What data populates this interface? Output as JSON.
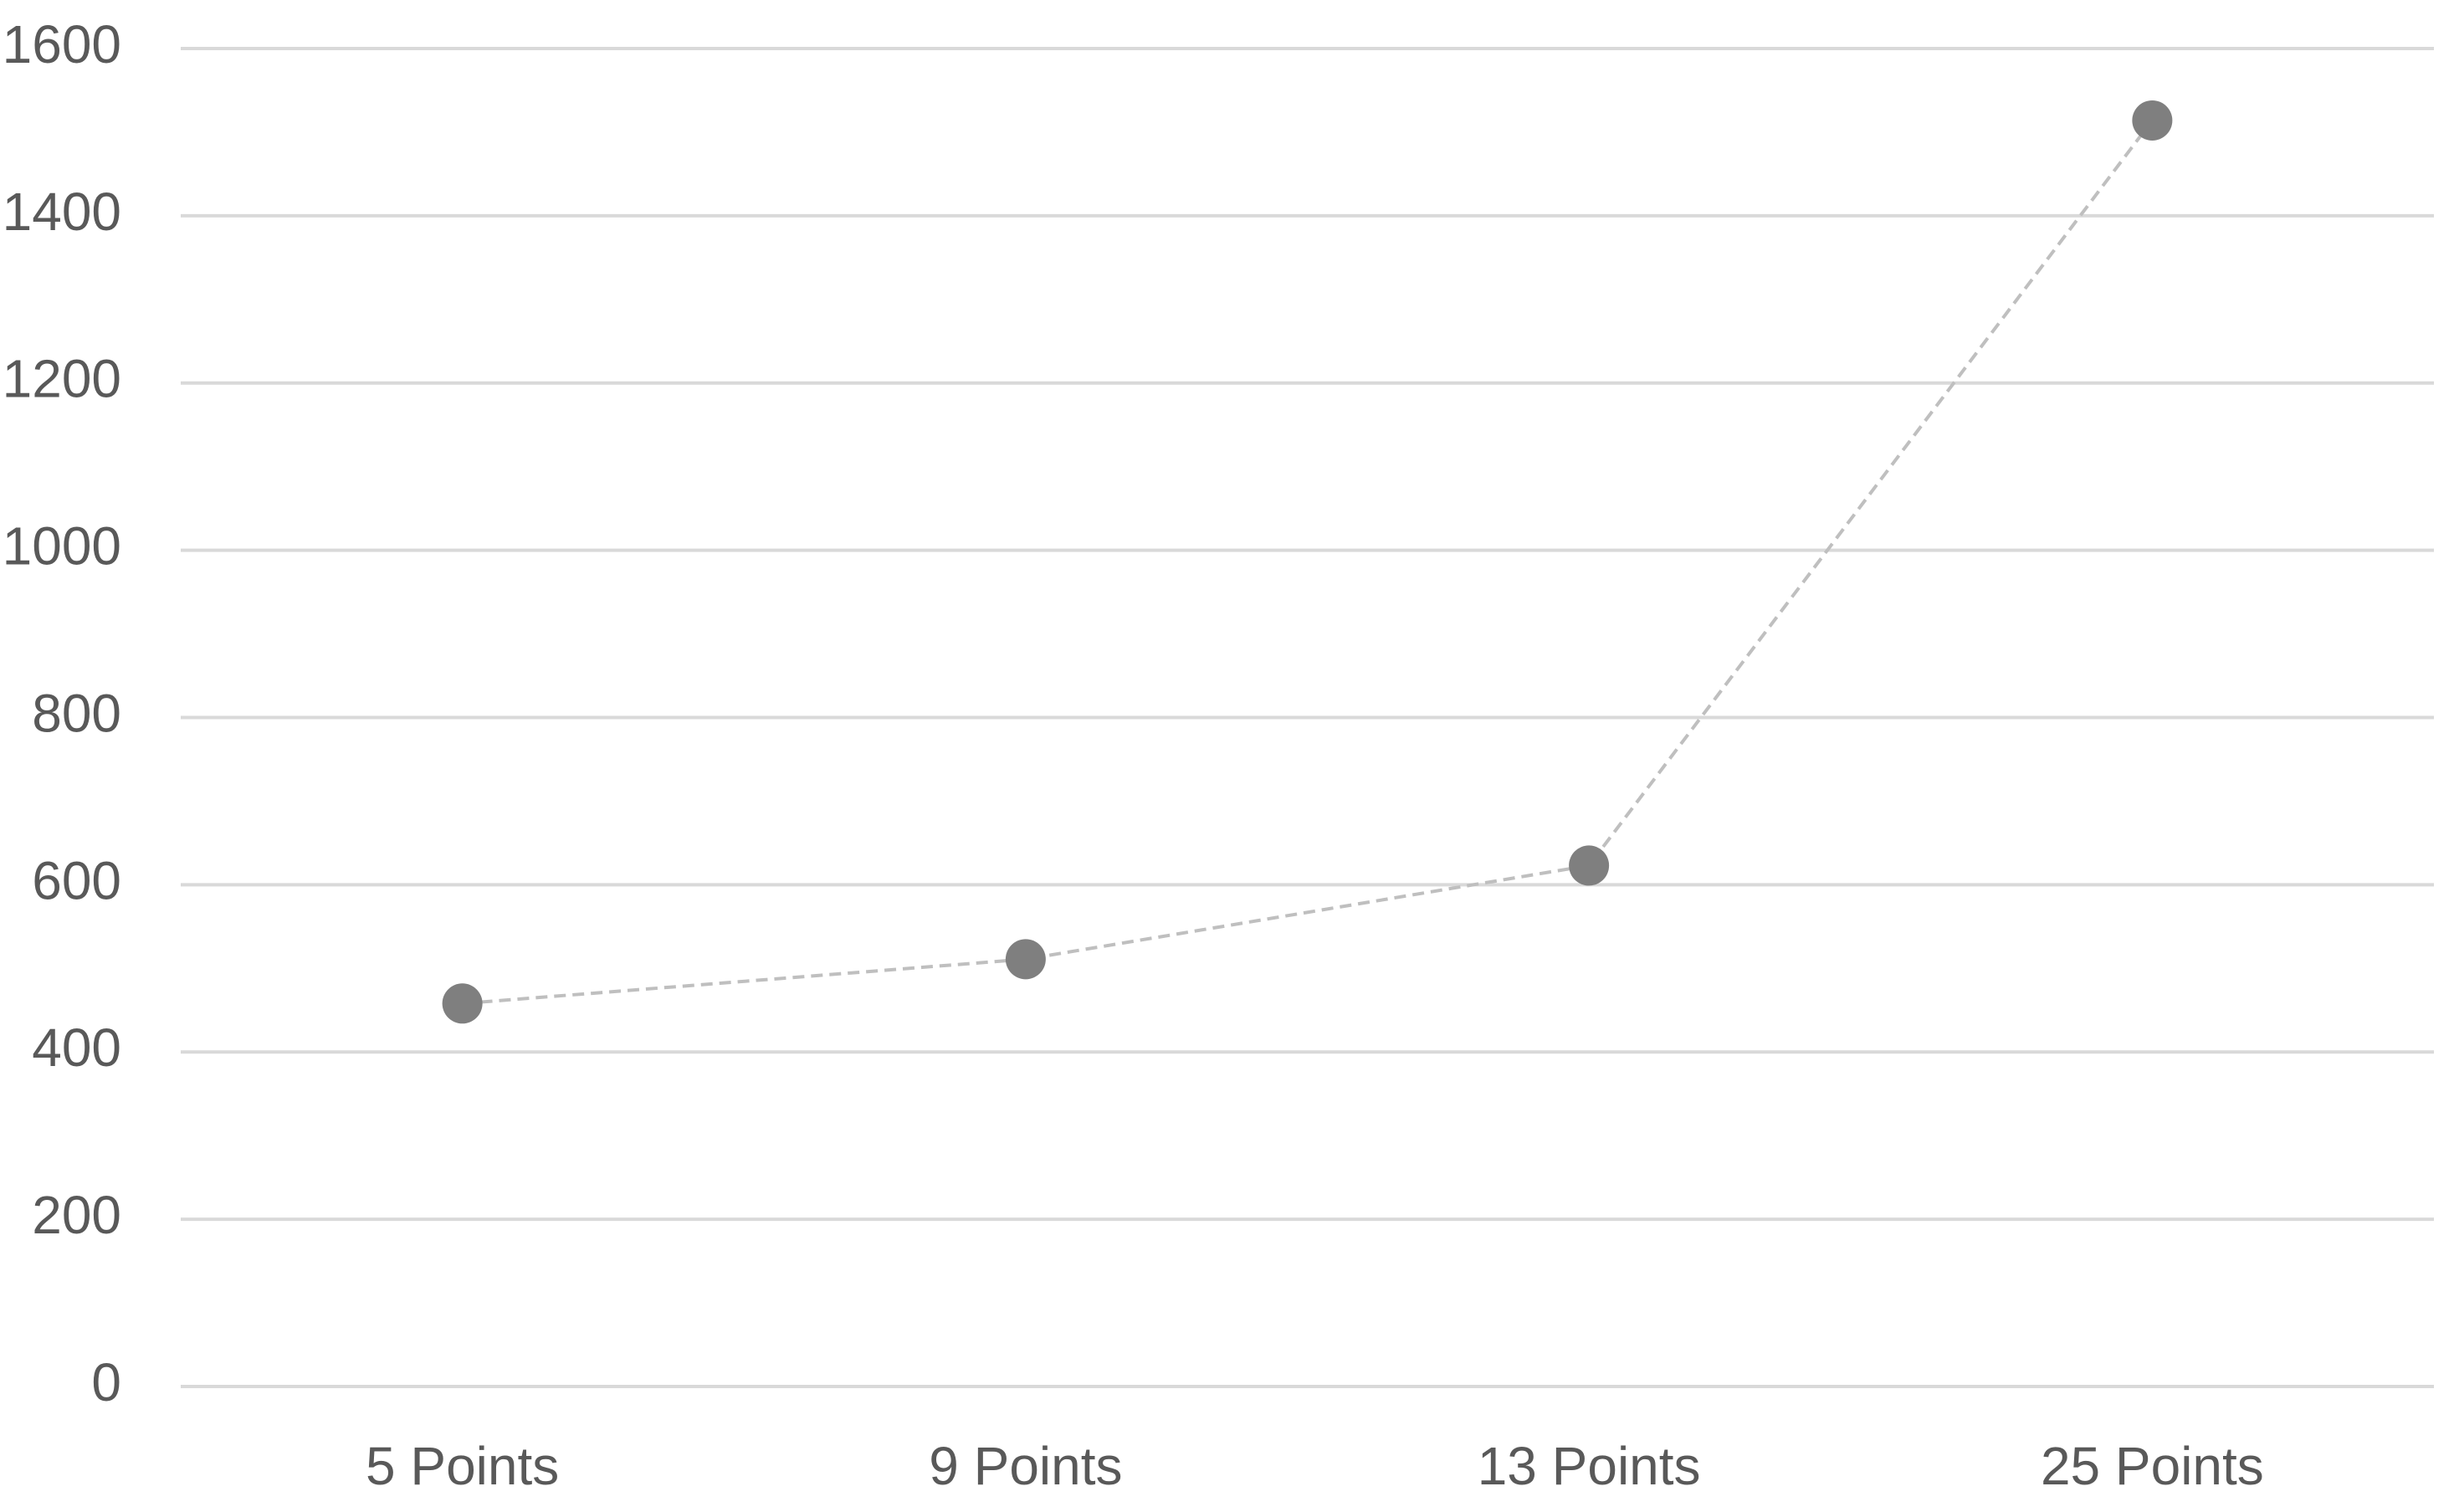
{
  "chart_data": {
    "type": "line",
    "categories": [
      "5 Points",
      "9 Points",
      "13 Points",
      "25 Points"
    ],
    "values": [
      458,
      511,
      623,
      1514
    ],
    "color": "#7f7f7f",
    "line_color": "#bfbfbf",
    "ylim": [
      0,
      1600
    ],
    "yticks": [
      0,
      200,
      400,
      600,
      800,
      1000,
      1200,
      1400,
      1600
    ],
    "grid": true
  }
}
